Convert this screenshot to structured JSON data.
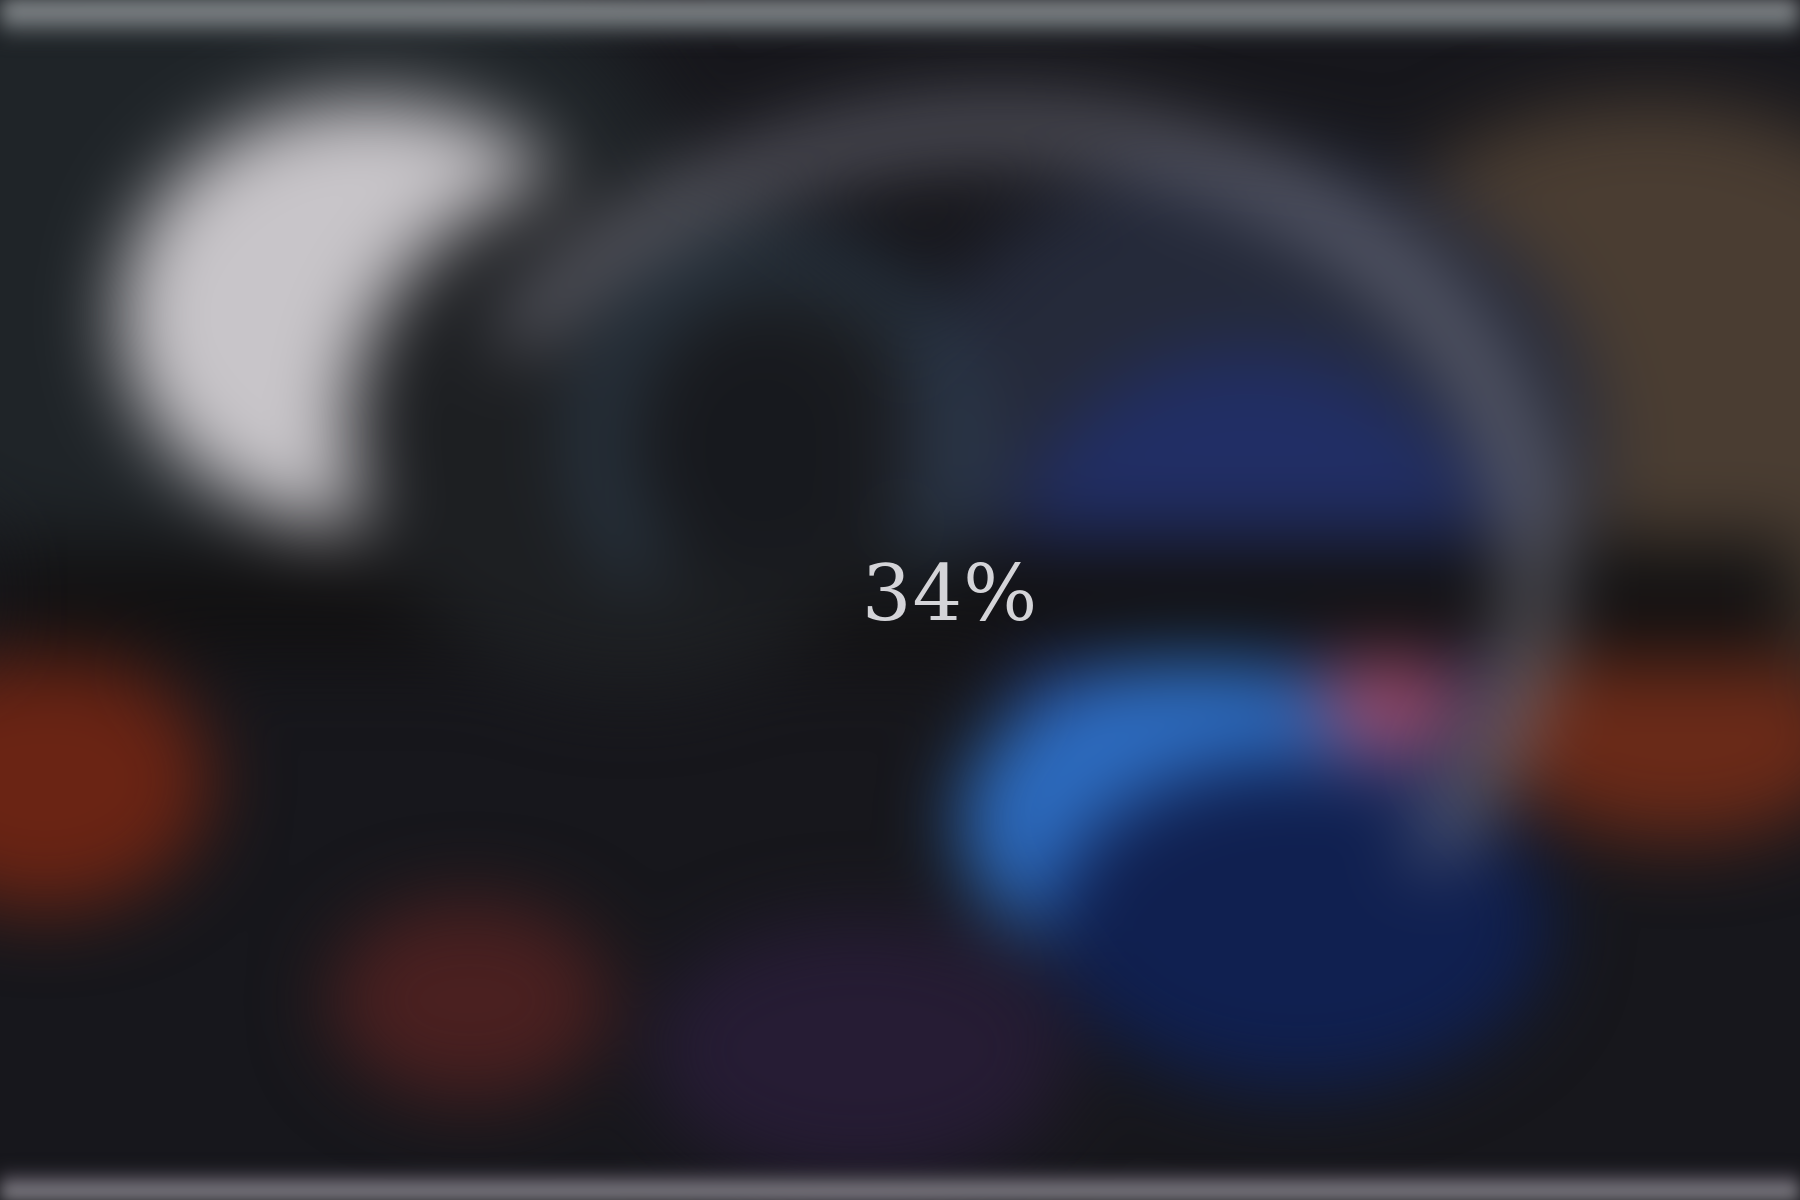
{
  "loading_screen": {
    "progress_text": "34%",
    "progress": 0.34
  },
  "colors": {
    "background": "#17171c",
    "moon": "#c8c5c9",
    "arc": "#9696a5",
    "blue_glow": "#2d6cc0",
    "orange_glow": "#7a2a18",
    "text": "#d4d4d8"
  }
}
